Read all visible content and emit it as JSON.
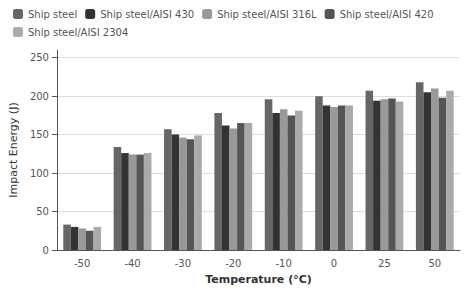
{
  "chart_data": {
    "type": "bar",
    "xlabel": "Temperature (°C)",
    "ylabel": "Impact Energy (J)",
    "categories": [
      "-50",
      "-40",
      "-30",
      "-20",
      "-10",
      "0",
      "25",
      "50"
    ],
    "series": [
      {
        "name": "Ship steel",
        "color": "#666666",
        "values": [
          33,
          134,
          157,
          178,
          196,
          200,
          207,
          218
        ]
      },
      {
        "name": "Ship steel/AISI 430",
        "color": "#333333",
        "values": [
          30,
          126,
          150,
          162,
          178,
          188,
          194,
          205
        ]
      },
      {
        "name": "Ship steel/AISI 316L",
        "color": "#999999",
        "values": [
          28,
          124,
          146,
          158,
          183,
          186,
          196,
          210
        ]
      },
      {
        "name": "Ship steel/AISI 420",
        "color": "#555555",
        "values": [
          25,
          124,
          144,
          165,
          175,
          188,
          197,
          198
        ]
      },
      {
        "name": "Ship steel/AISI 2304",
        "color": "#aaaaaa",
        "values": [
          30,
          126,
          149,
          165,
          181,
          188,
          193,
          207
        ]
      }
    ],
    "ylim": [
      0,
      260
    ],
    "yticks": [
      0,
      50,
      100,
      150,
      200,
      250
    ],
    "grid": true,
    "legend": "upper left"
  }
}
